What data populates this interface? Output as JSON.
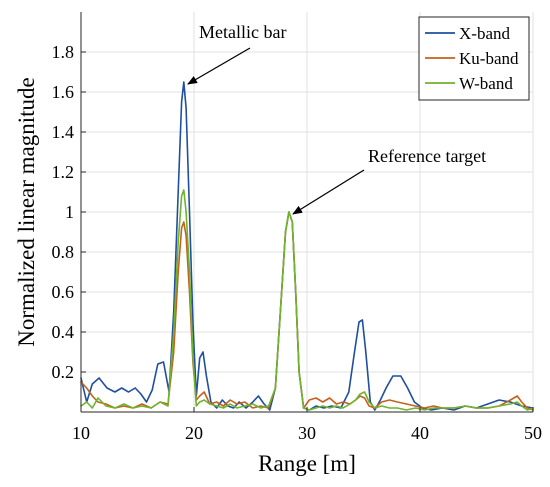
{
  "chart_data": {
    "type": "line",
    "title": "",
    "xlabel": "Range [m]",
    "ylabel": "Normalized linear magnitude",
    "xlim": [
      10,
      50
    ],
    "ylim": [
      0,
      2
    ],
    "xticks": [
      10,
      20,
      30,
      40,
      50
    ],
    "xtick_labels": [
      "10",
      "20",
      "30",
      "40",
      "50"
    ],
    "yticks": [
      0.2,
      0.4,
      0.6,
      0.8,
      1.0,
      1.2,
      1.4,
      1.6,
      1.8
    ],
    "ytick_labels": [
      "0.2",
      "0.4",
      "0.6",
      "0.8",
      "1",
      "1.2",
      "1.4",
      "1.6",
      "1.8"
    ],
    "grid": true,
    "legend_position": "top-right",
    "series": [
      {
        "name": "X-band",
        "color": "#1f4f9e",
        "x": [
          10,
          10.5,
          11,
          11.6,
          12.3,
          13,
          13.6,
          14.2,
          14.8,
          15.3,
          15.8,
          16.3,
          16.8,
          17.3,
          17.8,
          18.2,
          18.6,
          18.9,
          19.1,
          19.3,
          19.6,
          19.9,
          20.2,
          20.5,
          20.8,
          21.1,
          21.5,
          22,
          22.5,
          23,
          23.5,
          24,
          24.6,
          25.2,
          25.7,
          26.2,
          26.7,
          27.2,
          27.7,
          28.1,
          28.4,
          28.7,
          29,
          29.3,
          29.7,
          30.2,
          30.8,
          31.5,
          32.2,
          33,
          33.7,
          34.2,
          34.6,
          34.9,
          35.2,
          35.6,
          36,
          36.5,
          37,
          37.6,
          38.3,
          38.9,
          39.5,
          40.2,
          41,
          42,
          43,
          44,
          45,
          46,
          47,
          48,
          49,
          50
        ],
        "y": [
          0.17,
          0.05,
          0.14,
          0.17,
          0.12,
          0.1,
          0.12,
          0.1,
          0.12,
          0.09,
          0.05,
          0.11,
          0.24,
          0.25,
          0.1,
          0.5,
          1.1,
          1.55,
          1.65,
          1.52,
          1.0,
          0.45,
          0.08,
          0.27,
          0.3,
          0.18,
          0.05,
          0.02,
          0.06,
          0.03,
          0.02,
          0.05,
          0.02,
          0.05,
          0.08,
          0.04,
          0.01,
          0.12,
          0.55,
          0.9,
          1.0,
          0.95,
          0.6,
          0.2,
          0.02,
          0.01,
          0.03,
          0.02,
          0.03,
          0.02,
          0.1,
          0.3,
          0.45,
          0.46,
          0.3,
          0.05,
          0.01,
          0.06,
          0.12,
          0.18,
          0.18,
          0.12,
          0.05,
          0.02,
          0.01,
          0.02,
          0.01,
          0.03,
          0.02,
          0.04,
          0.06,
          0.05,
          0.03,
          0.02
        ]
      },
      {
        "name": "Ku-band",
        "color": "#c2621e",
        "x": [
          10,
          10.5,
          11,
          11.5,
          12.2,
          13,
          13.8,
          14.6,
          15.4,
          16.2,
          17,
          17.7,
          18.2,
          18.6,
          18.9,
          19.1,
          19.3,
          19.6,
          19.9,
          20.2,
          20.5,
          20.9,
          21.4,
          22,
          22.6,
          23.2,
          23.8,
          24.5,
          25.2,
          25.9,
          26.6,
          27.2,
          27.7,
          28.1,
          28.4,
          28.7,
          29,
          29.3,
          29.7,
          30.2,
          30.8,
          31.4,
          32,
          32.6,
          33.2,
          33.8,
          34.3,
          34.7,
          35.1,
          35.5,
          36,
          36.6,
          37.3,
          38,
          38.8,
          39.6,
          40.4,
          41.2,
          42,
          43,
          44,
          45,
          46,
          47,
          48,
          48.6,
          49,
          49.5,
          50
        ],
        "y": [
          0.15,
          0.12,
          0.08,
          0.05,
          0.04,
          0.02,
          0.03,
          0.02,
          0.04,
          0.02,
          0.05,
          0.04,
          0.3,
          0.7,
          0.92,
          0.95,
          0.88,
          0.6,
          0.25,
          0.06,
          0.08,
          0.1,
          0.04,
          0.05,
          0.03,
          0.06,
          0.04,
          0.05,
          0.02,
          0.03,
          0.02,
          0.12,
          0.55,
          0.9,
          1.0,
          0.95,
          0.6,
          0.2,
          0.02,
          0.06,
          0.07,
          0.05,
          0.07,
          0.04,
          0.05,
          0.04,
          0.06,
          0.08,
          0.07,
          0.03,
          0.02,
          0.05,
          0.06,
          0.05,
          0.04,
          0.03,
          0.02,
          0.03,
          0.02,
          0.02,
          0.03,
          0.02,
          0.02,
          0.03,
          0.06,
          0.08,
          0.05,
          0.02,
          0.01
        ]
      },
      {
        "name": "W-band",
        "color": "#6fb32e",
        "x": [
          10,
          10.5,
          11,
          11.5,
          12.2,
          13,
          13.8,
          14.6,
          15.4,
          16.2,
          17,
          17.7,
          18.2,
          18.6,
          18.9,
          19.1,
          19.3,
          19.6,
          19.9,
          20.2,
          20.5,
          20.9,
          21.4,
          22,
          22.6,
          23.2,
          23.8,
          24.5,
          25.2,
          25.9,
          26.6,
          27.2,
          27.7,
          28.1,
          28.4,
          28.7,
          29,
          29.3,
          29.7,
          30.2,
          30.8,
          31.4,
          32,
          32.6,
          33.2,
          33.8,
          34.3,
          34.7,
          35.1,
          35.5,
          36,
          36.6,
          37.3,
          38,
          38.8,
          39.6,
          40.4,
          41.2,
          42,
          43,
          44,
          45,
          46,
          47,
          48,
          48.6,
          49,
          49.5,
          50
        ],
        "y": [
          0.03,
          0.05,
          0.02,
          0.07,
          0.03,
          0.02,
          0.04,
          0.02,
          0.03,
          0.02,
          0.05,
          0.03,
          0.4,
          0.85,
          1.08,
          1.11,
          1.0,
          0.7,
          0.28,
          0.03,
          0.05,
          0.06,
          0.04,
          0.03,
          0.02,
          0.04,
          0.02,
          0.03,
          0.04,
          0.02,
          0.03,
          0.12,
          0.55,
          0.9,
          1.0,
          0.95,
          0.6,
          0.2,
          0.02,
          0.01,
          0.02,
          0.03,
          0.02,
          0.03,
          0.02,
          0.04,
          0.06,
          0.09,
          0.1,
          0.05,
          0.02,
          0.03,
          0.02,
          0.02,
          0.01,
          0.02,
          0.01,
          0.02,
          0.02,
          0.02,
          0.03,
          0.02,
          0.02,
          0.03,
          0.04,
          0.05,
          0.03,
          0.01,
          0.02
        ]
      }
    ],
    "annotations": [
      {
        "text": "Metallic bar",
        "points_to": [
          19.2,
          1.65
        ]
      },
      {
        "text": "Reference target",
        "points_to": [
          28.5,
          1.0
        ]
      }
    ]
  }
}
